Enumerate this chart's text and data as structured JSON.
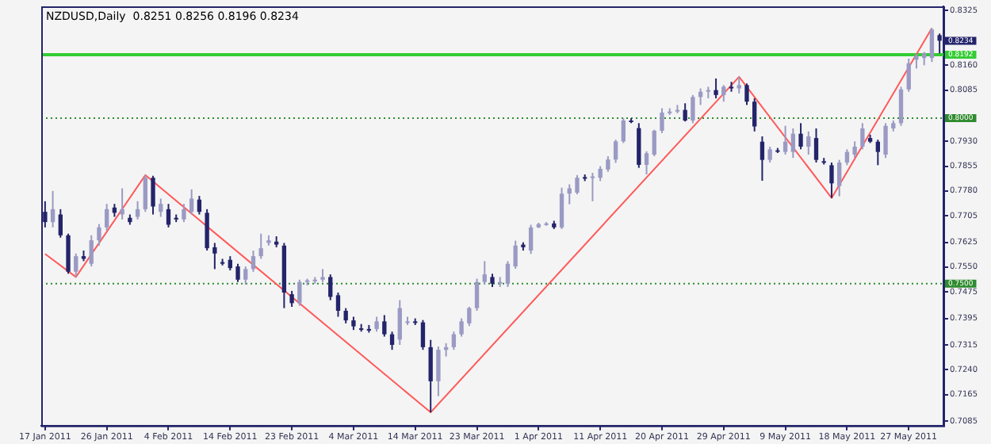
{
  "chart_data": {
    "type": "candlestick",
    "title": "NZDUSD,Daily  0.8251 0.8256 0.8196 0.8234",
    "categories": [
      "17 Jan 2011",
      null,
      null,
      null,
      null,
      null,
      null,
      null,
      "26 Jan 2011",
      null,
      null,
      null,
      null,
      null,
      null,
      null,
      "4 Feb 2011",
      null,
      null,
      null,
      null,
      null,
      null,
      null,
      "14 Feb 2011",
      null,
      null,
      null,
      null,
      null,
      null,
      null,
      "23 Feb 2011",
      null,
      null,
      null,
      null,
      null,
      null,
      null,
      "4 Mar 2011",
      null,
      null,
      null,
      null,
      null,
      null,
      null,
      "14 Mar 2011",
      null,
      null,
      null,
      null,
      null,
      null,
      null,
      "23 Mar 2011",
      null,
      null,
      null,
      null,
      null,
      null,
      null,
      "1 Apr 2011",
      null,
      null,
      null,
      null,
      null,
      null,
      null,
      "11 Apr 2011",
      null,
      null,
      null,
      null,
      null,
      null,
      null,
      "20 Apr 2011",
      null,
      null,
      null,
      null,
      null,
      null,
      null,
      "29 Apr 2011",
      null,
      null,
      null,
      null,
      null,
      null,
      null,
      "9 May 2011",
      null,
      null,
      null,
      null,
      null,
      null,
      null,
      "18 May 2011",
      null,
      null,
      null,
      null,
      null,
      null,
      null,
      "27 May 2011",
      null,
      null,
      null,
      null
    ],
    "colors": [
      "#24246b",
      "#9a9ac4",
      "#24246b",
      "#24246b",
      "#9a9ac4",
      "#24246b",
      "#9a9ac4",
      "#9a9ac4",
      "#9a9ac4",
      "#24246b",
      "#9a9ac4",
      "#24246b",
      "#9a9ac4",
      "#9a9ac4",
      "#24246b",
      "#9a9ac4",
      "#24246b",
      "#24246b",
      "#9a9ac4",
      "#9a9ac4",
      "#24246b",
      "#24246b",
      "#24246b",
      "#24246b",
      "#24246b",
      "#24246b",
      "#9a9ac4",
      "#9a9ac4",
      "#9a9ac4",
      "#9a9ac4",
      "#24246b",
      "#24246b",
      "#24246b",
      "#9a9ac4",
      "#9a9ac4",
      "#9a9ac4",
      "#9a9ac4",
      "#24246b",
      "#24246b",
      "#24246b",
      "#24246b",
      "#24246b",
      "#24246b",
      "#9a9ac4",
      "#24246b",
      "#24246b",
      "#9a9ac4",
      "#9a9ac4",
      "#24246b",
      "#24246b",
      "#24246b",
      "#9a9ac4",
      "#9a9ac4",
      "#9a9ac4",
      "#9a9ac4",
      "#9a9ac4",
      "#9a9ac4",
      "#9a9ac4",
      "#24246b",
      "#9a9ac4",
      "#9a9ac4",
      "#9a9ac4",
      "#24246b",
      "#9a9ac4",
      "#9a9ac4",
      "#9a9ac4",
      "#24246b",
      "#9a9ac4",
      "#9a9ac4",
      "#9a9ac4",
      "#24246b",
      "#9a9ac4",
      "#9a9ac4",
      "#9a9ac4",
      "#9a9ac4",
      "#9a9ac4",
      "#24246b",
      "#24246b",
      "#9a9ac4",
      "#9a9ac4",
      "#9a9ac4",
      "#9a9ac4",
      "#9a9ac4",
      "#24246b",
      "#9a9ac4",
      "#9a9ac4",
      "#9a9ac4",
      "#24246b",
      "#9a9ac4",
      "#24246b",
      "#9a9ac4",
      "#24246b",
      "#24246b",
      "#24246b",
      "#9a9ac4",
      "#24246b",
      "#9a9ac4",
      "#9a9ac4",
      "#24246b",
      "#9a9ac4",
      "#24246b",
      "#24246b",
      "#24246b",
      "#9a9ac4",
      "#9a9ac4",
      "#9a9ac4",
      "#9a9ac4",
      "#24246b",
      "#24246b",
      "#9a9ac4",
      "#9a9ac4",
      "#9a9ac4",
      "#9a9ac4",
      "#9a9ac4",
      "#9a9ac4",
      "#9a9ac4",
      "#24246b"
    ],
    "ohlc": [
      [
        0.7717,
        0.7749,
        0.767,
        0.7686
      ],
      [
        0.7686,
        0.778,
        0.767,
        0.7725
      ],
      [
        0.7709,
        0.7725,
        0.7639,
        0.7646
      ],
      [
        0.7646,
        0.7651,
        0.753,
        0.7536
      ],
      [
        0.7536,
        0.7591,
        0.752,
        0.7583
      ],
      [
        0.7583,
        0.76,
        0.7568,
        0.7575
      ],
      [
        0.756,
        0.7646,
        0.7552,
        0.7631
      ],
      [
        0.7631,
        0.768,
        0.7615,
        0.767
      ],
      [
        0.767,
        0.7741,
        0.766,
        0.7725
      ],
      [
        0.773,
        0.7741,
        0.7702,
        0.7714
      ],
      [
        0.7709,
        0.7788,
        0.7694,
        0.7725
      ],
      [
        0.7699,
        0.7709,
        0.7678,
        0.7686
      ],
      [
        0.7702,
        0.7749,
        0.7694,
        0.7725
      ],
      [
        0.7725,
        0.7828,
        0.7717,
        0.782
      ],
      [
        0.782,
        0.7826,
        0.7709,
        0.7733
      ],
      [
        0.7717,
        0.7757,
        0.7702,
        0.7741
      ],
      [
        0.7725,
        0.7741,
        0.767,
        0.7678
      ],
      [
        0.7699,
        0.7709,
        0.7686,
        0.7694
      ],
      [
        0.7694,
        0.7741,
        0.7686,
        0.7725
      ],
      [
        0.7717,
        0.7785,
        0.7709,
        0.7757
      ],
      [
        0.7754,
        0.7765,
        0.7709,
        0.7717
      ],
      [
        0.7714,
        0.7725,
        0.76,
        0.7607
      ],
      [
        0.761,
        0.7623,
        0.7544,
        0.7591
      ],
      [
        0.7565,
        0.7575,
        0.7555,
        0.7563
      ],
      [
        0.7572,
        0.7583,
        0.754,
        0.7547
      ],
      [
        0.7552,
        0.756,
        0.7505,
        0.7512
      ],
      [
        0.7512,
        0.7552,
        0.7497,
        0.7544
      ],
      [
        0.7544,
        0.76,
        0.7536,
        0.7583
      ],
      [
        0.7583,
        0.7651,
        0.7575,
        0.7607
      ],
      [
        0.7623,
        0.7646,
        0.7615,
        0.7631
      ],
      [
        0.7627,
        0.7643,
        0.761,
        0.7618
      ],
      [
        0.7615,
        0.7623,
        0.7426,
        0.7473
      ],
      [
        0.7468,
        0.7478,
        0.743,
        0.7441
      ],
      [
        0.7441,
        0.7512,
        0.7433,
        0.7505
      ],
      [
        0.7505,
        0.7515,
        0.7495,
        0.751
      ],
      [
        0.751,
        0.752,
        0.75,
        0.7512
      ],
      [
        0.7512,
        0.7544,
        0.7505,
        0.752
      ],
      [
        0.752,
        0.7528,
        0.745,
        0.746
      ],
      [
        0.7465,
        0.7473,
        0.74,
        0.7418
      ],
      [
        0.7418,
        0.7426,
        0.738,
        0.7389
      ],
      [
        0.7389,
        0.74,
        0.736,
        0.7371
      ],
      [
        0.7365,
        0.7378,
        0.7355,
        0.7363
      ],
      [
        0.7363,
        0.7375,
        0.7352,
        0.736
      ],
      [
        0.7363,
        0.74,
        0.7355,
        0.7386
      ],
      [
        0.7386,
        0.7405,
        0.734,
        0.7347
      ],
      [
        0.7347,
        0.7355,
        0.73,
        0.7315
      ],
      [
        0.7331,
        0.745,
        0.7315,
        0.7426
      ],
      [
        0.7383,
        0.74,
        0.7375,
        0.7386
      ],
      [
        0.7386,
        0.7395,
        0.7375,
        0.7383
      ],
      [
        0.7383,
        0.739,
        0.73,
        0.7308
      ],
      [
        0.7308,
        0.733,
        0.7111,
        0.7205
      ],
      [
        0.7205,
        0.731,
        0.716,
        0.73
      ],
      [
        0.73,
        0.732,
        0.728,
        0.7308
      ],
      [
        0.7308,
        0.7355,
        0.73,
        0.7347
      ],
      [
        0.7347,
        0.7395,
        0.734,
        0.7386
      ],
      [
        0.738,
        0.743,
        0.7372,
        0.7426
      ],
      [
        0.7426,
        0.7515,
        0.7418,
        0.7505
      ],
      [
        0.7505,
        0.7568,
        0.7497,
        0.7528
      ],
      [
        0.752,
        0.753,
        0.749,
        0.75
      ],
      [
        0.75,
        0.752,
        0.749,
        0.7505
      ],
      [
        0.75,
        0.7568,
        0.749,
        0.756
      ],
      [
        0.7552,
        0.763,
        0.7545,
        0.7615
      ],
      [
        0.7618,
        0.7625,
        0.76,
        0.761
      ],
      [
        0.76,
        0.7678,
        0.759,
        0.767
      ],
      [
        0.767,
        0.7684,
        0.7668,
        0.768
      ],
      [
        0.768,
        0.7686,
        0.7675,
        0.7682
      ],
      [
        0.7682,
        0.769,
        0.7665,
        0.767
      ],
      [
        0.767,
        0.779,
        0.7665,
        0.7772
      ],
      [
        0.7772,
        0.78,
        0.774,
        0.7788
      ],
      [
        0.7775,
        0.7828,
        0.777,
        0.782
      ],
      [
        0.7822,
        0.783,
        0.781,
        0.7818
      ],
      [
        0.782,
        0.7835,
        0.7749,
        0.7824
      ],
      [
        0.782,
        0.7855,
        0.781,
        0.7847
      ],
      [
        0.7845,
        0.7885,
        0.7838,
        0.7875
      ],
      [
        0.7875,
        0.7935,
        0.7865,
        0.793
      ],
      [
        0.793,
        0.8,
        0.7925,
        0.7993
      ],
      [
        0.7993,
        0.8,
        0.7985,
        0.799
      ],
      [
        0.797,
        0.7985,
        0.785,
        0.7859
      ],
      [
        0.7859,
        0.79,
        0.783,
        0.7894
      ],
      [
        0.789,
        0.7965,
        0.7885,
        0.7962
      ],
      [
        0.7962,
        0.803,
        0.7955,
        0.8017
      ],
      [
        0.8017,
        0.803,
        0.801,
        0.802
      ],
      [
        0.802,
        0.804,
        0.8015,
        0.8025
      ],
      [
        0.8025,
        0.8045,
        0.799,
        0.7993
      ],
      [
        0.7993,
        0.807,
        0.7985,
        0.8064
      ],
      [
        0.8064,
        0.809,
        0.804,
        0.808
      ],
      [
        0.808,
        0.8095,
        0.806,
        0.8085
      ],
      [
        0.8085,
        0.812,
        0.806,
        0.807
      ],
      [
        0.807,
        0.81,
        0.805,
        0.8095
      ],
      [
        0.8095,
        0.811,
        0.808,
        0.809
      ],
      [
        0.809,
        0.8125,
        0.8075,
        0.81
      ],
      [
        0.81,
        0.8105,
        0.804,
        0.805
      ],
      [
        0.805,
        0.806,
        0.796,
        0.7975
      ],
      [
        0.7929,
        0.7945,
        0.7811,
        0.7874
      ],
      [
        0.7874,
        0.7914,
        0.7866,
        0.7906
      ],
      [
        0.7903,
        0.791,
        0.7895,
        0.7901
      ],
      [
        0.7898,
        0.7977,
        0.789,
        0.7929
      ],
      [
        0.7898,
        0.7969,
        0.788,
        0.7953
      ],
      [
        0.7953,
        0.7985,
        0.7906,
        0.7914
      ],
      [
        0.7914,
        0.796,
        0.789,
        0.7945
      ],
      [
        0.794,
        0.7969,
        0.7866,
        0.7874
      ],
      [
        0.787,
        0.788,
        0.786,
        0.7866
      ],
      [
        0.7858,
        0.7866,
        0.7759,
        0.7803
      ],
      [
        0.7795,
        0.7874,
        0.7764,
        0.7866
      ],
      [
        0.7866,
        0.7906,
        0.7858,
        0.7898
      ],
      [
        0.789,
        0.793,
        0.788,
        0.7914
      ],
      [
        0.7914,
        0.7985,
        0.7906,
        0.7969
      ],
      [
        0.794,
        0.795,
        0.7925,
        0.7929
      ],
      [
        0.7929,
        0.7935,
        0.7858,
        0.7898
      ],
      [
        0.789,
        0.7985,
        0.788,
        0.7977
      ],
      [
        0.7969,
        0.7993,
        0.796,
        0.7985
      ],
      [
        0.7985,
        0.8095,
        0.7977,
        0.8087
      ],
      [
        0.8087,
        0.818,
        0.808,
        0.8166
      ],
      [
        0.8177,
        0.8195,
        0.815,
        0.8189
      ],
      [
        0.8182,
        0.82,
        0.816,
        0.8197
      ],
      [
        0.8182,
        0.8272,
        0.817,
        0.8268
      ],
      [
        0.8251,
        0.8256,
        0.8196,
        0.8234
      ]
    ],
    "series": [
      {
        "type": "line",
        "color": "#ff5a5a",
        "values": [
          0.759,
          null,
          null,
          null,
          0.752,
          null,
          null,
          null,
          null,
          null,
          null,
          null,
          null,
          0.7828,
          null,
          null,
          null,
          null,
          null,
          null,
          null,
          null,
          null,
          null,
          null,
          null,
          null,
          null,
          null,
          null,
          null,
          null,
          null,
          null,
          null,
          null,
          null,
          null,
          null,
          null,
          null,
          null,
          null,
          null,
          null,
          null,
          null,
          null,
          null,
          null,
          0.7111,
          null,
          null,
          null,
          null,
          null,
          null,
          null,
          null,
          null,
          null,
          null,
          null,
          null,
          null,
          null,
          null,
          null,
          null,
          null,
          null,
          null,
          null,
          null,
          null,
          null,
          null,
          null,
          null,
          null,
          null,
          null,
          null,
          null,
          null,
          null,
          null,
          null,
          null,
          null,
          0.8125,
          null,
          null,
          null,
          null,
          null,
          null,
          null,
          null,
          null,
          null,
          null,
          0.7759,
          null,
          null,
          null,
          null,
          null,
          null,
          null,
          null,
          null,
          null,
          null,
          null,
          0.8272,
          null
        ]
      }
    ],
    "ylim": [
      0.7071,
      0.8338
    ],
    "yticks": [
      0.8325,
      {
        "value": 0.816,
        "label": "0.8160"
      },
      0.8085,
      {
        "value": 0.793,
        "label": "0.7930"
      },
      0.7855,
      {
        "value": 0.778,
        "label": "0.7780"
      },
      0.7705,
      0.7625,
      {
        "value": 0.755,
        "label": "0.7550"
      },
      0.7475,
      0.7395,
      0.7315,
      {
        "value": 0.724,
        "label": "0.7240"
      },
      0.7165,
      0.7085
    ],
    "ref_lines": [
      {
        "axis": "y",
        "value": 0.8192,
        "label": "0.8192",
        "color": "#33cc33",
        "line_style": "solid"
      },
      {
        "axis": "y",
        "value": 0.8,
        "label": "0.8000",
        "color": "#2e8b2e",
        "line_style": "dotted"
      },
      {
        "axis": "y",
        "value": 0.75,
        "label": "0.7500",
        "color": "#2e8b2e",
        "line_style": "dotted"
      }
    ],
    "annotations": [
      "0.8234"
    ],
    "marker": "none",
    "grid": false,
    "legend": false
  }
}
